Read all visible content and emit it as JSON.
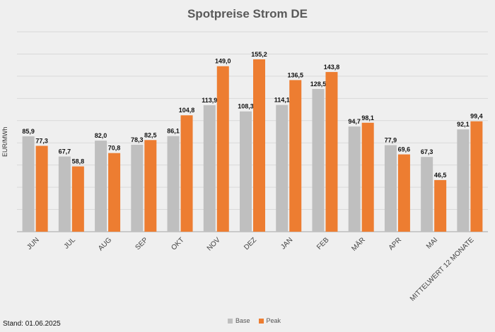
{
  "chart_data": {
    "type": "bar",
    "title": "Spotpreise Strom DE",
    "ylabel": "EUR/MWh",
    "xlabel": "",
    "categories": [
      "JUN",
      "JUL",
      "AUG",
      "SEP",
      "OKT",
      "NOV",
      "DEZ",
      "JAN",
      "FEB",
      "MÄR",
      "APR",
      "MAI",
      "MITTELWERT 12 MONATE"
    ],
    "series": [
      {
        "name": "Base",
        "color": "#bfbfbf",
        "values": [
          85.9,
          67.7,
          82.0,
          78.3,
          86.1,
          113.9,
          108.3,
          114.1,
          128.5,
          94.7,
          77.9,
          67.3,
          92.1
        ],
        "labels": [
          "85,9",
          "67,7",
          "82,0",
          "78,3",
          "86,1",
          "113,9",
          "108,3",
          "114,1",
          "128,5",
          "94,7",
          "77,9",
          "67,3",
          "92,1"
        ]
      },
      {
        "name": "Peak",
        "color": "#ed7d31",
        "values": [
          77.3,
          58.8,
          70.8,
          82.5,
          104.8,
          149.0,
          155.2,
          136.5,
          143.8,
          98.1,
          69.6,
          46.5,
          99.4
        ],
        "labels": [
          "77,3",
          "58,8",
          "70,8",
          "82,5",
          "104,8",
          "149,0",
          "155,2",
          "136,5",
          "143,8",
          "98,1",
          "69,6",
          "46,5",
          "99,4"
        ]
      }
    ],
    "ylim": [
      0,
      180
    ],
    "grid": true,
    "legend": "bottom-center"
  },
  "footnote": "Stand: 01.06.2025"
}
